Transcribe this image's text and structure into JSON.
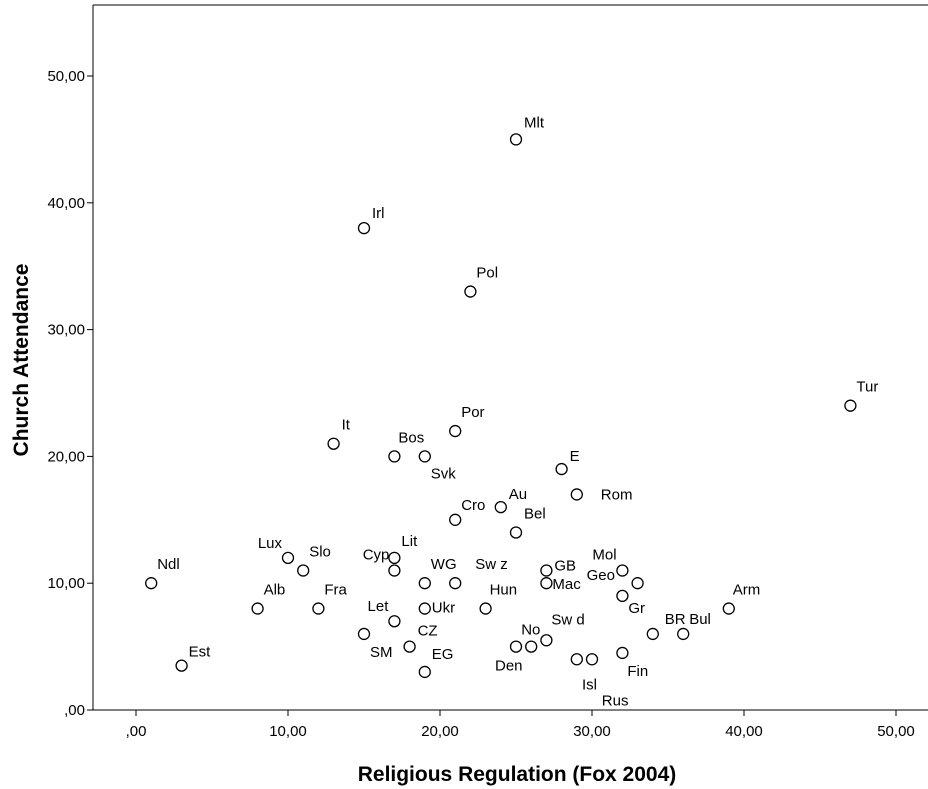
{
  "chart_data": {
    "type": "scatter",
    "xlabel": "Religious Regulation (Fox 2004)",
    "ylabel": "Church Attendance",
    "xlim": [
      -3.5,
      52
    ],
    "ylim": [
      0,
      55
    ],
    "x_ticks": [
      0,
      10,
      20,
      30,
      40,
      50
    ],
    "y_ticks": [
      0,
      10,
      20,
      30,
      40,
      50
    ],
    "x_tick_labels": [
      ",00",
      "10,00",
      "20,00",
      "30,00",
      "40,00",
      "50,00"
    ],
    "y_tick_labels": [
      ",00",
      "10,00",
      "20,00",
      "30,00",
      "40,00",
      "50,00"
    ],
    "grid": false,
    "marker": "open-circle",
    "points": [
      {
        "label": "Mlt",
        "x": 25,
        "y": 45
      },
      {
        "label": "Irl",
        "x": 15,
        "y": 38
      },
      {
        "label": "Pol",
        "x": 22,
        "y": 33
      },
      {
        "label": "Tur",
        "x": 47,
        "y": 24
      },
      {
        "label": "Por",
        "x": 21,
        "y": 22
      },
      {
        "label": "It",
        "x": 13,
        "y": 21
      },
      {
        "label": "Bos",
        "x": 17,
        "y": 20
      },
      {
        "label": "Svk",
        "x": 19,
        "y": 20
      },
      {
        "label": "E",
        "x": 28,
        "y": 19
      },
      {
        "label": "Rom",
        "x": 29,
        "y": 17
      },
      {
        "label": "Au",
        "x": 24,
        "y": 16
      },
      {
        "label": "Cro",
        "x": 21,
        "y": 15
      },
      {
        "label": "Bel",
        "x": 25,
        "y": 14
      },
      {
        "label": "Lux",
        "x": 10,
        "y": 12
      },
      {
        "label": "Slo",
        "x": 11,
        "y": 11
      },
      {
        "label": "Lit",
        "x": 17,
        "y": 12
      },
      {
        "label": "Cyp",
        "x": 17,
        "y": 11
      },
      {
        "label": "Ndl",
        "x": 1,
        "y": 10
      },
      {
        "label": "WG",
        "x": 19,
        "y": 10
      },
      {
        "label": "Sw z",
        "x": 21,
        "y": 10
      },
      {
        "label": "GB",
        "x": 27,
        "y": 11
      },
      {
        "label": "Mac",
        "x": 27,
        "y": 10
      },
      {
        "label": "Mol",
        "x": 32,
        "y": 11
      },
      {
        "label": "Geo",
        "x": 33,
        "y": 10
      },
      {
        "label": "Gr",
        "x": 32,
        "y": 9
      },
      {
        "label": "Alb",
        "x": 8,
        "y": 8
      },
      {
        "label": "Fra",
        "x": 12,
        "y": 8
      },
      {
        "label": "Ukr",
        "x": 19,
        "y": 8
      },
      {
        "label": "Hun",
        "x": 23,
        "y": 8
      },
      {
        "label": "Arm",
        "x": 39,
        "y": 8
      },
      {
        "label": "Let",
        "x": 17,
        "y": 7
      },
      {
        "label": "SM",
        "x": 15,
        "y": 6
      },
      {
        "label": "BR",
        "x": 34,
        "y": 6
      },
      {
        "label": "Bul",
        "x": 36,
        "y": 6
      },
      {
        "label": "Sw d",
        "x": 27,
        "y": 5.5
      },
      {
        "label": "CZ",
        "x": 18,
        "y": 5
      },
      {
        "label": "No",
        "x": 26,
        "y": 5
      },
      {
        "label": "Den",
        "x": 25,
        "y": 5
      },
      {
        "label": "Fin",
        "x": 32,
        "y": 4.5
      },
      {
        "label": "Isl",
        "x": 30,
        "y": 4
      },
      {
        "label": "Rus",
        "x": 29,
        "y": 4
      },
      {
        "label": "Est",
        "x": 3,
        "y": 3.5
      },
      {
        "label": "EG",
        "x": 19,
        "y": 3
      }
    ]
  }
}
